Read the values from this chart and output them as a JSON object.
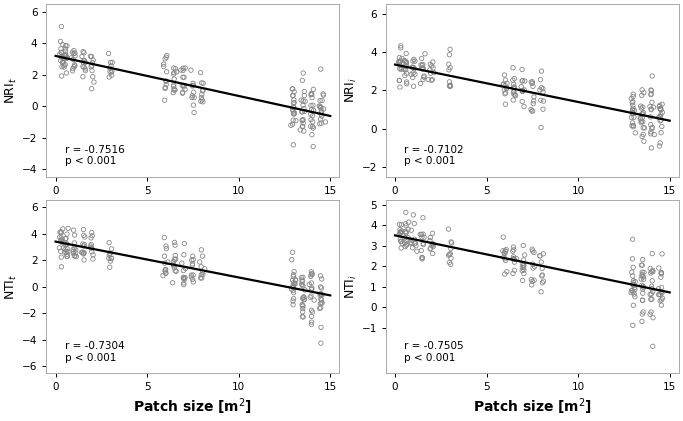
{
  "subplots": [
    {
      "ylabel": "NRI$_t$",
      "xlabel": "",
      "ylim": [
        -4.5,
        6.5
      ],
      "yticks": [
        -4,
        -2,
        0,
        2,
        4,
        6
      ],
      "r_text": "r = -0.7516",
      "p_text": "p < 0.001",
      "slope": -0.255,
      "intercept": 3.2,
      "x_clusters": [
        0.3,
        0.6,
        1.0,
        1.5,
        2.0,
        3.0,
        6.0,
        6.5,
        7.0,
        7.5,
        8.0,
        13.0,
        13.5,
        14.0,
        14.5
      ],
      "n_per_cluster": [
        15,
        15,
        12,
        12,
        10,
        10,
        12,
        12,
        12,
        10,
        10,
        20,
        20,
        18,
        18
      ],
      "noise": [
        0.6,
        0.6,
        0.6,
        0.6,
        0.7,
        0.7,
        0.7,
        0.7,
        0.7,
        0.7,
        0.7,
        0.9,
        0.9,
        0.9,
        0.9
      ]
    },
    {
      "ylabel": "NRI$_i$",
      "xlabel": "",
      "ylim": [
        -2.5,
        6.5
      ],
      "yticks": [
        -2,
        0,
        2,
        4,
        6
      ],
      "r_text": "r = -0.7102",
      "p_text": "p < 0.001",
      "slope": -0.195,
      "intercept": 3.35,
      "x_clusters": [
        0.3,
        0.6,
        1.0,
        1.5,
        2.0,
        3.0,
        6.0,
        6.5,
        7.0,
        7.5,
        8.0,
        13.0,
        13.5,
        14.0,
        14.5
      ],
      "n_per_cluster": [
        15,
        15,
        12,
        12,
        10,
        10,
        12,
        12,
        12,
        10,
        10,
        20,
        20,
        18,
        18
      ],
      "noise": [
        0.5,
        0.5,
        0.5,
        0.5,
        0.6,
        0.6,
        0.6,
        0.6,
        0.6,
        0.6,
        0.6,
        0.8,
        0.8,
        0.8,
        0.8
      ]
    },
    {
      "ylabel": "NTI$_t$",
      "xlabel": "Patch size [m$^2$]",
      "ylim": [
        -6.5,
        6.5
      ],
      "yticks": [
        -6,
        -4,
        -2,
        0,
        2,
        4,
        6
      ],
      "r_text": "r = -0.7304",
      "p_text": "p < 0.001",
      "slope": -0.27,
      "intercept": 3.4,
      "x_clusters": [
        0.3,
        0.6,
        1.0,
        1.5,
        2.0,
        3.0,
        6.0,
        6.5,
        7.0,
        7.5,
        8.0,
        13.0,
        13.5,
        14.0,
        14.5
      ],
      "n_per_cluster": [
        15,
        15,
        12,
        12,
        10,
        10,
        12,
        12,
        12,
        10,
        10,
        20,
        20,
        18,
        18
      ],
      "noise": [
        0.7,
        0.7,
        0.7,
        0.7,
        0.8,
        0.8,
        0.8,
        0.8,
        0.8,
        0.8,
        0.8,
        1.1,
        1.1,
        1.1,
        1.1
      ]
    },
    {
      "ylabel": "NTI$_i$",
      "xlabel": "Patch size [m$^2$]",
      "ylim": [
        -3.2,
        5.2
      ],
      "yticks": [
        -1,
        0,
        1,
        2,
        3,
        4,
        5
      ],
      "r_text": "r = -0.7505",
      "p_text": "p < 0.001",
      "slope": -0.185,
      "intercept": 3.5,
      "x_clusters": [
        0.3,
        0.6,
        1.0,
        1.5,
        2.0,
        3.0,
        6.0,
        6.5,
        7.0,
        7.5,
        8.0,
        13.0,
        13.5,
        14.0,
        14.5
      ],
      "n_per_cluster": [
        15,
        15,
        12,
        12,
        10,
        10,
        12,
        12,
        12,
        10,
        10,
        20,
        20,
        18,
        18
      ],
      "noise": [
        0.45,
        0.45,
        0.45,
        0.45,
        0.5,
        0.5,
        0.5,
        0.5,
        0.5,
        0.5,
        0.5,
        0.75,
        0.75,
        0.75,
        0.75
      ]
    }
  ],
  "xlim": [
    -0.5,
    15.5
  ],
  "xticks": [
    0,
    5,
    10,
    15
  ],
  "scatter_color": "#888888",
  "line_color": "#000000",
  "bg_color": "#ffffff",
  "marker_size": 10,
  "marker_edge_width": 0.6,
  "annotation_fontsize": 7.5,
  "axis_label_fontsize": 9,
  "tick_fontsize": 7.5,
  "x_jitter_std": 0.06
}
